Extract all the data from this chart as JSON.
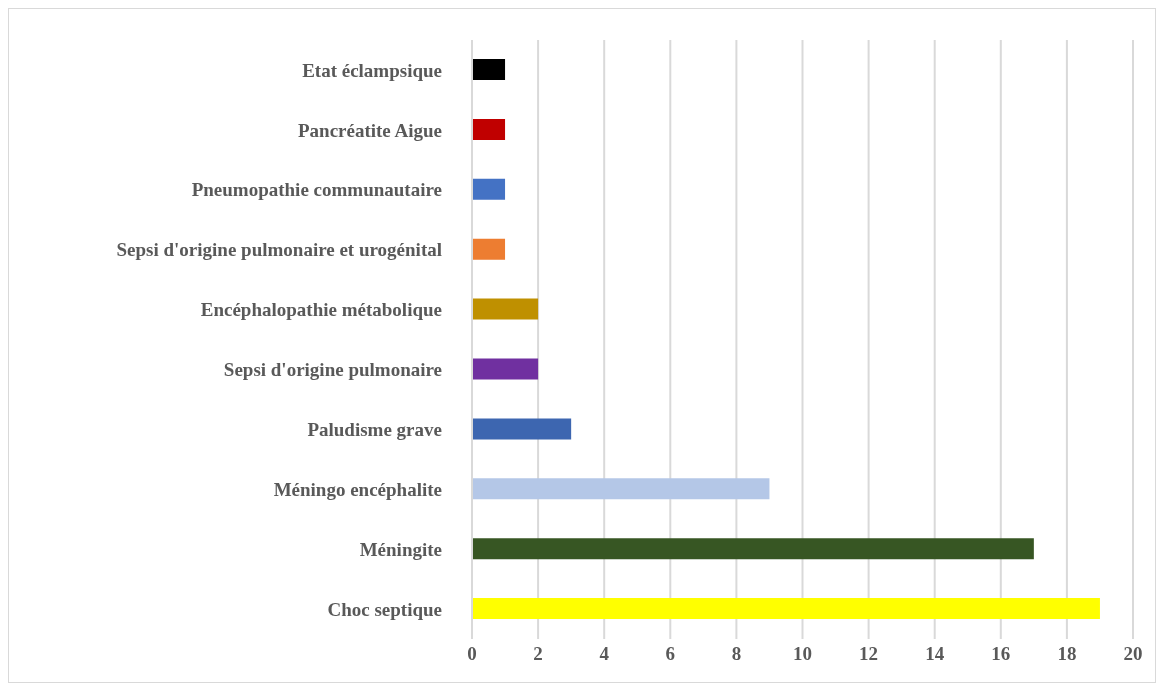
{
  "chart_data": {
    "type": "bar",
    "orientation": "horizontal",
    "categories": [
      "Etat éclampsique",
      "Pancréatite Aigue",
      "Pneumopathie communautaire",
      "Sepsi d'origine pulmonaire  et urogénital",
      "Encéphalopathie métabolique",
      "Sepsi d'origine pulmonaire",
      "Paludisme grave",
      "Méningo encéphalite",
      "Méningite",
      "Choc septique"
    ],
    "values": [
      1,
      1,
      1,
      1,
      2,
      2,
      3,
      9,
      17,
      19
    ],
    "colors": [
      "#000000",
      "#c00000",
      "#4472c4",
      "#ed7d31",
      "#bf9000",
      "#7030a0",
      "#3d66b0",
      "#b4c7e7",
      "#375623",
      "#ffff00"
    ],
    "xlim": [
      0,
      20
    ],
    "xticks": [
      0,
      2,
      4,
      6,
      8,
      10,
      12,
      14,
      16,
      18,
      20
    ],
    "grid": "x"
  }
}
